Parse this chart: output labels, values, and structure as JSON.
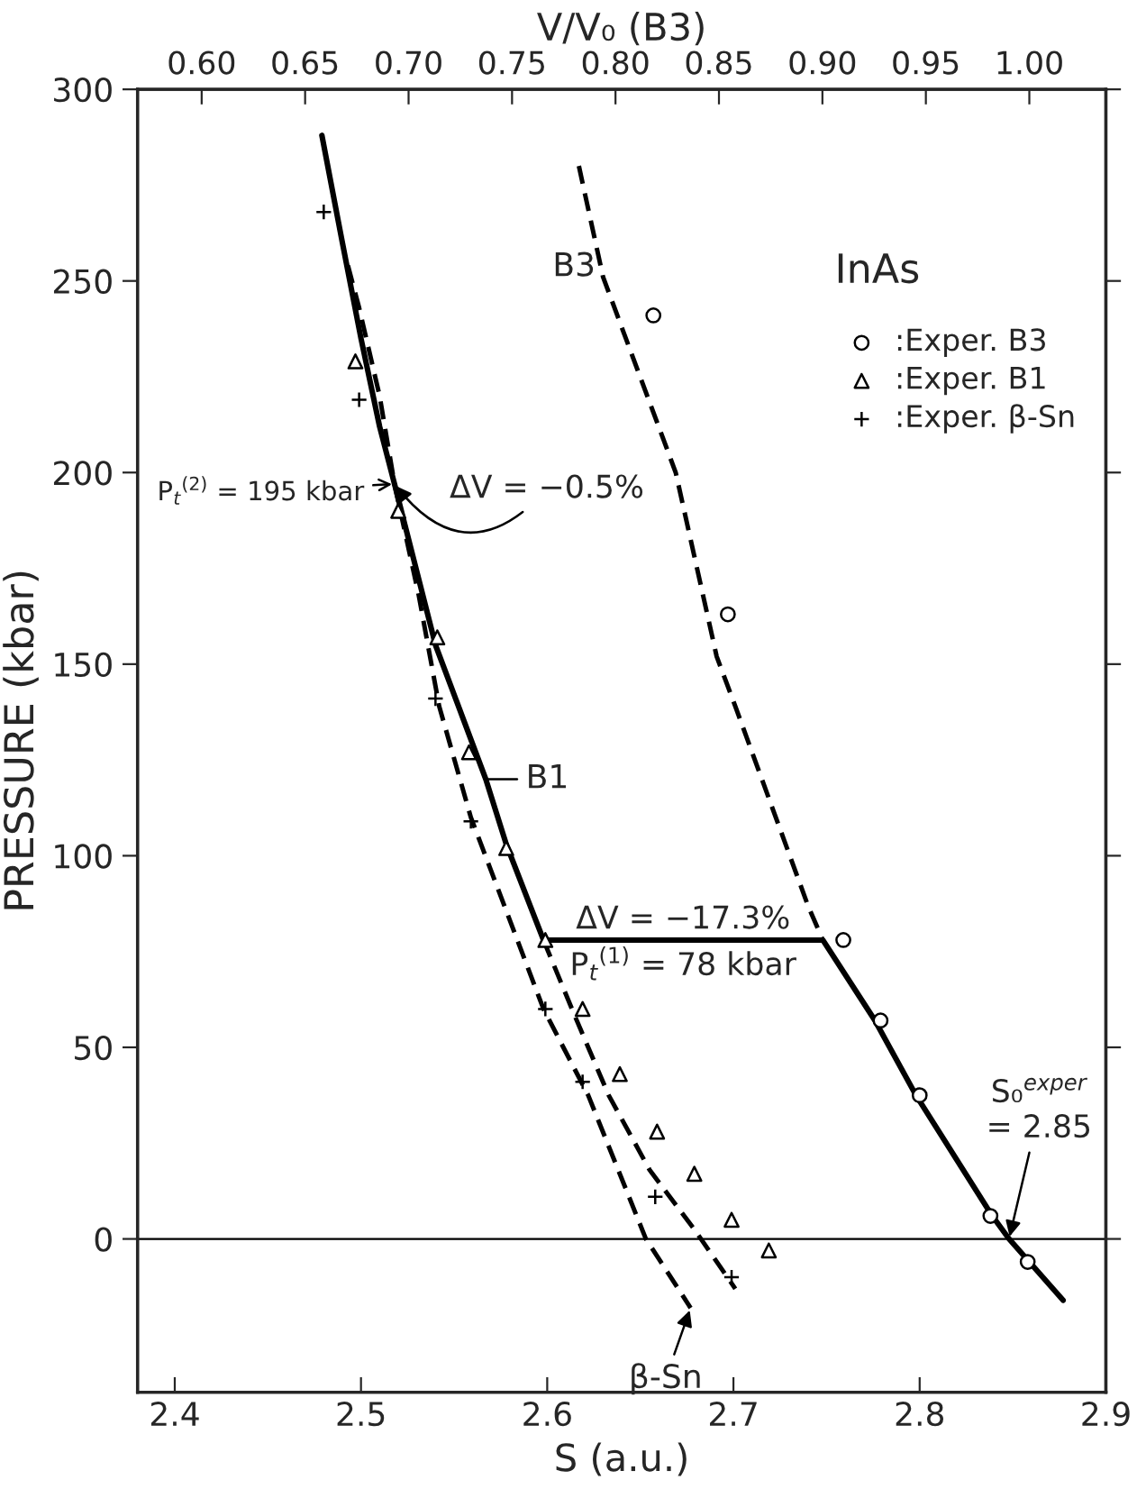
{
  "chart_data": {
    "type": "line",
    "xlabel": "S (a.u.)",
    "ylabel": "PRESSURE (kbar)",
    "x2label": "V/V₀ (B3)",
    "xlim": [
      2.38,
      2.9
    ],
    "xticks": [
      {
        "value": 2.4,
        "label": "2.4"
      },
      {
        "value": 2.5,
        "label": "2.5"
      },
      {
        "value": 2.6,
        "label": "2.6"
      },
      {
        "value": 2.7,
        "label": "2.7"
      },
      {
        "value": 2.8,
        "label": "2.8"
      },
      {
        "value": 2.9,
        "label": "2.9"
      }
    ],
    "ylim": [
      -40,
      300
    ],
    "yticks": [
      0,
      50,
      100,
      150,
      200,
      250,
      300
    ],
    "x2lim": [
      0.569,
      1.037
    ],
    "x2ticks": [
      {
        "value": 0.6,
        "label": "0.60"
      },
      {
        "value": 0.65,
        "label": "0.65"
      },
      {
        "value": 0.7,
        "label": "0.70"
      },
      {
        "value": 0.75,
        "label": "0.75"
      },
      {
        "value": 0.8,
        "label": "0.80"
      },
      {
        "value": 0.85,
        "label": "0.85"
      },
      {
        "value": 0.9,
        "label": "0.90"
      },
      {
        "value": 0.95,
        "label": "0.95"
      },
      {
        "value": 1.0,
        "label": "1.00"
      }
    ],
    "grid": false,
    "legend": "top right",
    "ref_lines": [
      {
        "axis": "y",
        "value": 0,
        "color": "#000000"
      }
    ],
    "series": [
      {
        "line_style": "dashed",
        "color": "#000000",
        "x": [
          2.617,
          2.63,
          2.669,
          2.691,
          2.701,
          2.74,
          2.748
        ],
        "values": [
          280,
          251,
          200,
          152,
          139,
          87,
          78
        ]
      },
      {
        "line_style": "solid",
        "color": "#000000",
        "x": [
          2.479,
          2.49,
          2.5,
          2.51,
          2.518,
          2.54,
          2.567,
          2.578,
          2.598,
          2.748,
          2.776,
          2.798,
          2.839,
          2.848,
          2.877
        ],
        "values": [
          288,
          260,
          235,
          212,
          197,
          155,
          120,
          103,
          78,
          78,
          57,
          37.5,
          6,
          0,
          -16
        ]
      },
      {
        "line_style": "dashed",
        "color": "#000000",
        "x": [
          2.493,
          2.499,
          2.51,
          2.518,
          2.531,
          2.542,
          2.559,
          2.598,
          2.622,
          2.653,
          2.677
        ],
        "values": [
          254,
          243,
          220,
          197,
          168,
          139,
          110,
          60,
          37.5,
          0,
          -18
        ]
      },
      {
        "line_style": "dashed",
        "color": "#000000",
        "x": [
          2.598,
          2.615,
          2.633,
          2.655,
          2.679,
          2.701
        ],
        "values": [
          78,
          58,
          37.5,
          18,
          2.5,
          -13
        ]
      },
      {
        "type": "scatter",
        "name": ":Exper. B3",
        "marker": "circle",
        "color": "#000000",
        "x": [
          2.657,
          2.697,
          2.759,
          2.779,
          2.8,
          2.838,
          2.858
        ],
        "values": [
          241,
          163,
          78,
          57,
          37.5,
          6,
          -6
        ]
      },
      {
        "type": "scatter",
        "name": ":Exper. B1",
        "marker": "triangle",
        "color": "#000000",
        "x": [
          2.497,
          2.52,
          2.541,
          2.558,
          2.578,
          2.599,
          2.619,
          2.639,
          2.659,
          2.679,
          2.699,
          2.719
        ],
        "values": [
          229,
          190,
          157,
          127,
          102,
          78,
          60,
          43,
          28,
          17,
          5,
          -3
        ]
      },
      {
        "type": "scatter",
        "name": ":Exper. β-Sn",
        "marker": "cross",
        "color": "#000000",
        "x": [
          2.48,
          2.499,
          2.54,
          2.559,
          2.599,
          2.619,
          2.658,
          2.699
        ],
        "values": [
          268,
          219,
          141,
          109,
          60,
          41,
          11,
          -10
        ]
      }
    ],
    "annotations": [
      "InAs",
      {
        "text": "B3",
        "x": 2.63,
        "y": 251
      },
      {
        "text": "B1",
        "x": 2.567,
        "y": 120
      },
      {
        "text": "β-Sn",
        "x": 2.677,
        "y": -18
      },
      {
        "text": "P$_{t}$$^{(2)}$ = 195 kbar",
        "x": 2.518,
        "y": 197
      },
      {
        "text": "ΔV = −0.5%",
        "x": 2.518,
        "y": 197
      },
      {
        "text": "ΔV = −17.3%",
        "x": 2.673,
        "y": 78
      },
      {
        "text": "P$_{t}$$^{(1)}$ = 78 kbar",
        "x": 2.673,
        "y": 78
      },
      {
        "text": "S₀$^{exper}$\n= 2.85",
        "x": 2.848,
        "y": 0
      }
    ]
  }
}
